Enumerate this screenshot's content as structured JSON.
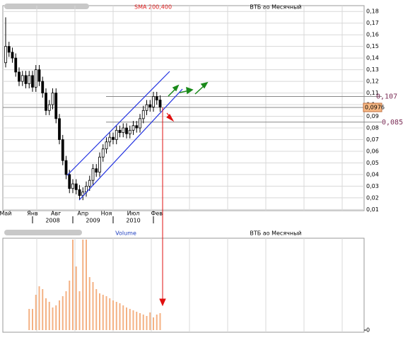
{
  "chart_data": [
    {
      "type": "candlestick",
      "title": "ВТБ ао Месячный",
      "subtitle": "SMA 200,400",
      "categories": [
        "Май",
        null,
        null,
        null,
        null,
        null,
        null,
        null,
        "Янв",
        null,
        null,
        null,
        null,
        null,
        null,
        "Авг",
        null,
        null,
        null,
        null,
        null,
        null,
        null,
        "Апр",
        null,
        null,
        null,
        null,
        null,
        null,
        "Ноя",
        null,
        null,
        null,
        null,
        null,
        null,
        null,
        "Июл",
        null,
        null,
        null,
        null,
        null,
        null,
        "Фев",
        null
      ],
      "year_ticks": [
        {
          "value": 8,
          "label": "2008"
        },
        {
          "value": 20,
          "label": "2009"
        },
        {
          "value": 32,
          "label": "2010"
        }
      ],
      "open": [
        0.136,
        0.15,
        0.145,
        0.14,
        0.128,
        0.12,
        0.125,
        0.118,
        0.125,
        0.115,
        0.13,
        0.12,
        0.11,
        0.095,
        0.1,
        0.11,
        0.088,
        0.07,
        0.052,
        0.04,
        0.028,
        0.032,
        0.027,
        0.022,
        0.025,
        0.03,
        0.035,
        0.045,
        0.042,
        0.055,
        0.062,
        0.068,
        0.072,
        0.07,
        0.078,
        0.076,
        0.08,
        0.075,
        0.078,
        0.082,
        0.08,
        0.088,
        0.095,
        0.1,
        0.098,
        0.107,
        0.104
      ],
      "high": [
        0.175,
        0.154,
        0.149,
        0.144,
        0.132,
        0.129,
        0.129,
        0.129,
        0.129,
        0.134,
        0.134,
        0.124,
        0.114,
        0.104,
        0.114,
        0.114,
        0.092,
        0.074,
        0.056,
        0.044,
        0.036,
        0.036,
        0.031,
        0.029,
        0.034,
        0.039,
        0.049,
        0.049,
        0.059,
        0.066,
        0.072,
        0.076,
        0.076,
        0.082,
        0.082,
        0.084,
        0.084,
        0.082,
        0.086,
        0.086,
        0.092,
        0.099,
        0.104,
        0.104,
        0.111,
        0.111,
        0.108
      ],
      "low": [
        0.132,
        0.141,
        0.136,
        0.124,
        0.116,
        0.116,
        0.114,
        0.114,
        0.111,
        0.111,
        0.116,
        0.106,
        0.091,
        0.091,
        0.096,
        0.084,
        0.066,
        0.048,
        0.036,
        0.024,
        0.024,
        0.023,
        0.018,
        0.018,
        0.021,
        0.026,
        0.031,
        0.038,
        0.038,
        0.051,
        0.058,
        0.064,
        0.066,
        0.066,
        0.072,
        0.072,
        0.071,
        0.071,
        0.074,
        0.076,
        0.076,
        0.084,
        0.091,
        0.094,
        0.094,
        0.1,
        0.094
      ],
      "close": [
        0.15,
        0.145,
        0.14,
        0.128,
        0.12,
        0.125,
        0.118,
        0.125,
        0.115,
        0.13,
        0.12,
        0.11,
        0.095,
        0.1,
        0.11,
        0.088,
        0.07,
        0.052,
        0.04,
        0.028,
        0.032,
        0.027,
        0.022,
        0.025,
        0.03,
        0.035,
        0.045,
        0.042,
        0.055,
        0.062,
        0.068,
        0.072,
        0.07,
        0.078,
        0.076,
        0.08,
        0.075,
        0.078,
        0.082,
        0.08,
        0.088,
        0.095,
        0.1,
        0.098,
        0.107,
        0.104,
        0.098
      ],
      "ylim": [
        0.009,
        0.185
      ],
      "yticks": [
        {
          "value": 0.01,
          "label": "0,01"
        },
        {
          "value": 0.02,
          "label": "0,02"
        },
        {
          "value": 0.03,
          "label": "0,03"
        },
        {
          "value": 0.04,
          "label": "0,04"
        },
        {
          "value": 0.05,
          "label": "0,05"
        },
        {
          "value": 0.06,
          "label": "0,06"
        },
        {
          "value": 0.07,
          "label": "0,07"
        },
        {
          "value": 0.08,
          "label": "0,08"
        },
        {
          "value": 0.09,
          "label": "0,09"
        },
        {
          "value": 0.1,
          "label": "0,1"
        },
        {
          "value": 0.11,
          "label": "0,11"
        },
        {
          "value": 0.12,
          "label": "0,12"
        },
        {
          "value": 0.13,
          "label": "0,13"
        },
        {
          "value": 0.14,
          "label": "0,14"
        },
        {
          "value": 0.15,
          "label": "0,15"
        },
        {
          "value": 0.16,
          "label": "0,16"
        },
        {
          "value": 0.17,
          "label": "0,17"
        },
        {
          "value": 0.18,
          "label": "0,18"
        }
      ],
      "grid": true,
      "levels": [
        {
          "value": 0.107,
          "label": "0,107"
        },
        {
          "value": 0.085,
          "label": "0,085"
        }
      ],
      "last_price": {
        "value": 0.0976,
        "label": "0,0976"
      }
    },
    {
      "type": "bar",
      "title": "ВТБ ао Месячный",
      "subtitle": "Volume",
      "values": [
        null,
        null,
        null,
        null,
        null,
        null,
        null,
        30,
        30,
        50,
        62,
        58,
        45,
        40,
        32,
        35,
        42,
        48,
        55,
        70,
        128,
        90,
        55,
        128,
        128,
        75,
        68,
        58,
        52,
        50,
        48,
        45,
        42,
        40,
        38,
        35,
        32,
        30,
        28,
        26,
        24,
        22,
        20,
        25,
        18,
        22,
        24
      ],
      "color": "#f4b183",
      "ylim": [
        0,
        130
      ],
      "yticks": [
        0
      ],
      "grid": true
    }
  ]
}
